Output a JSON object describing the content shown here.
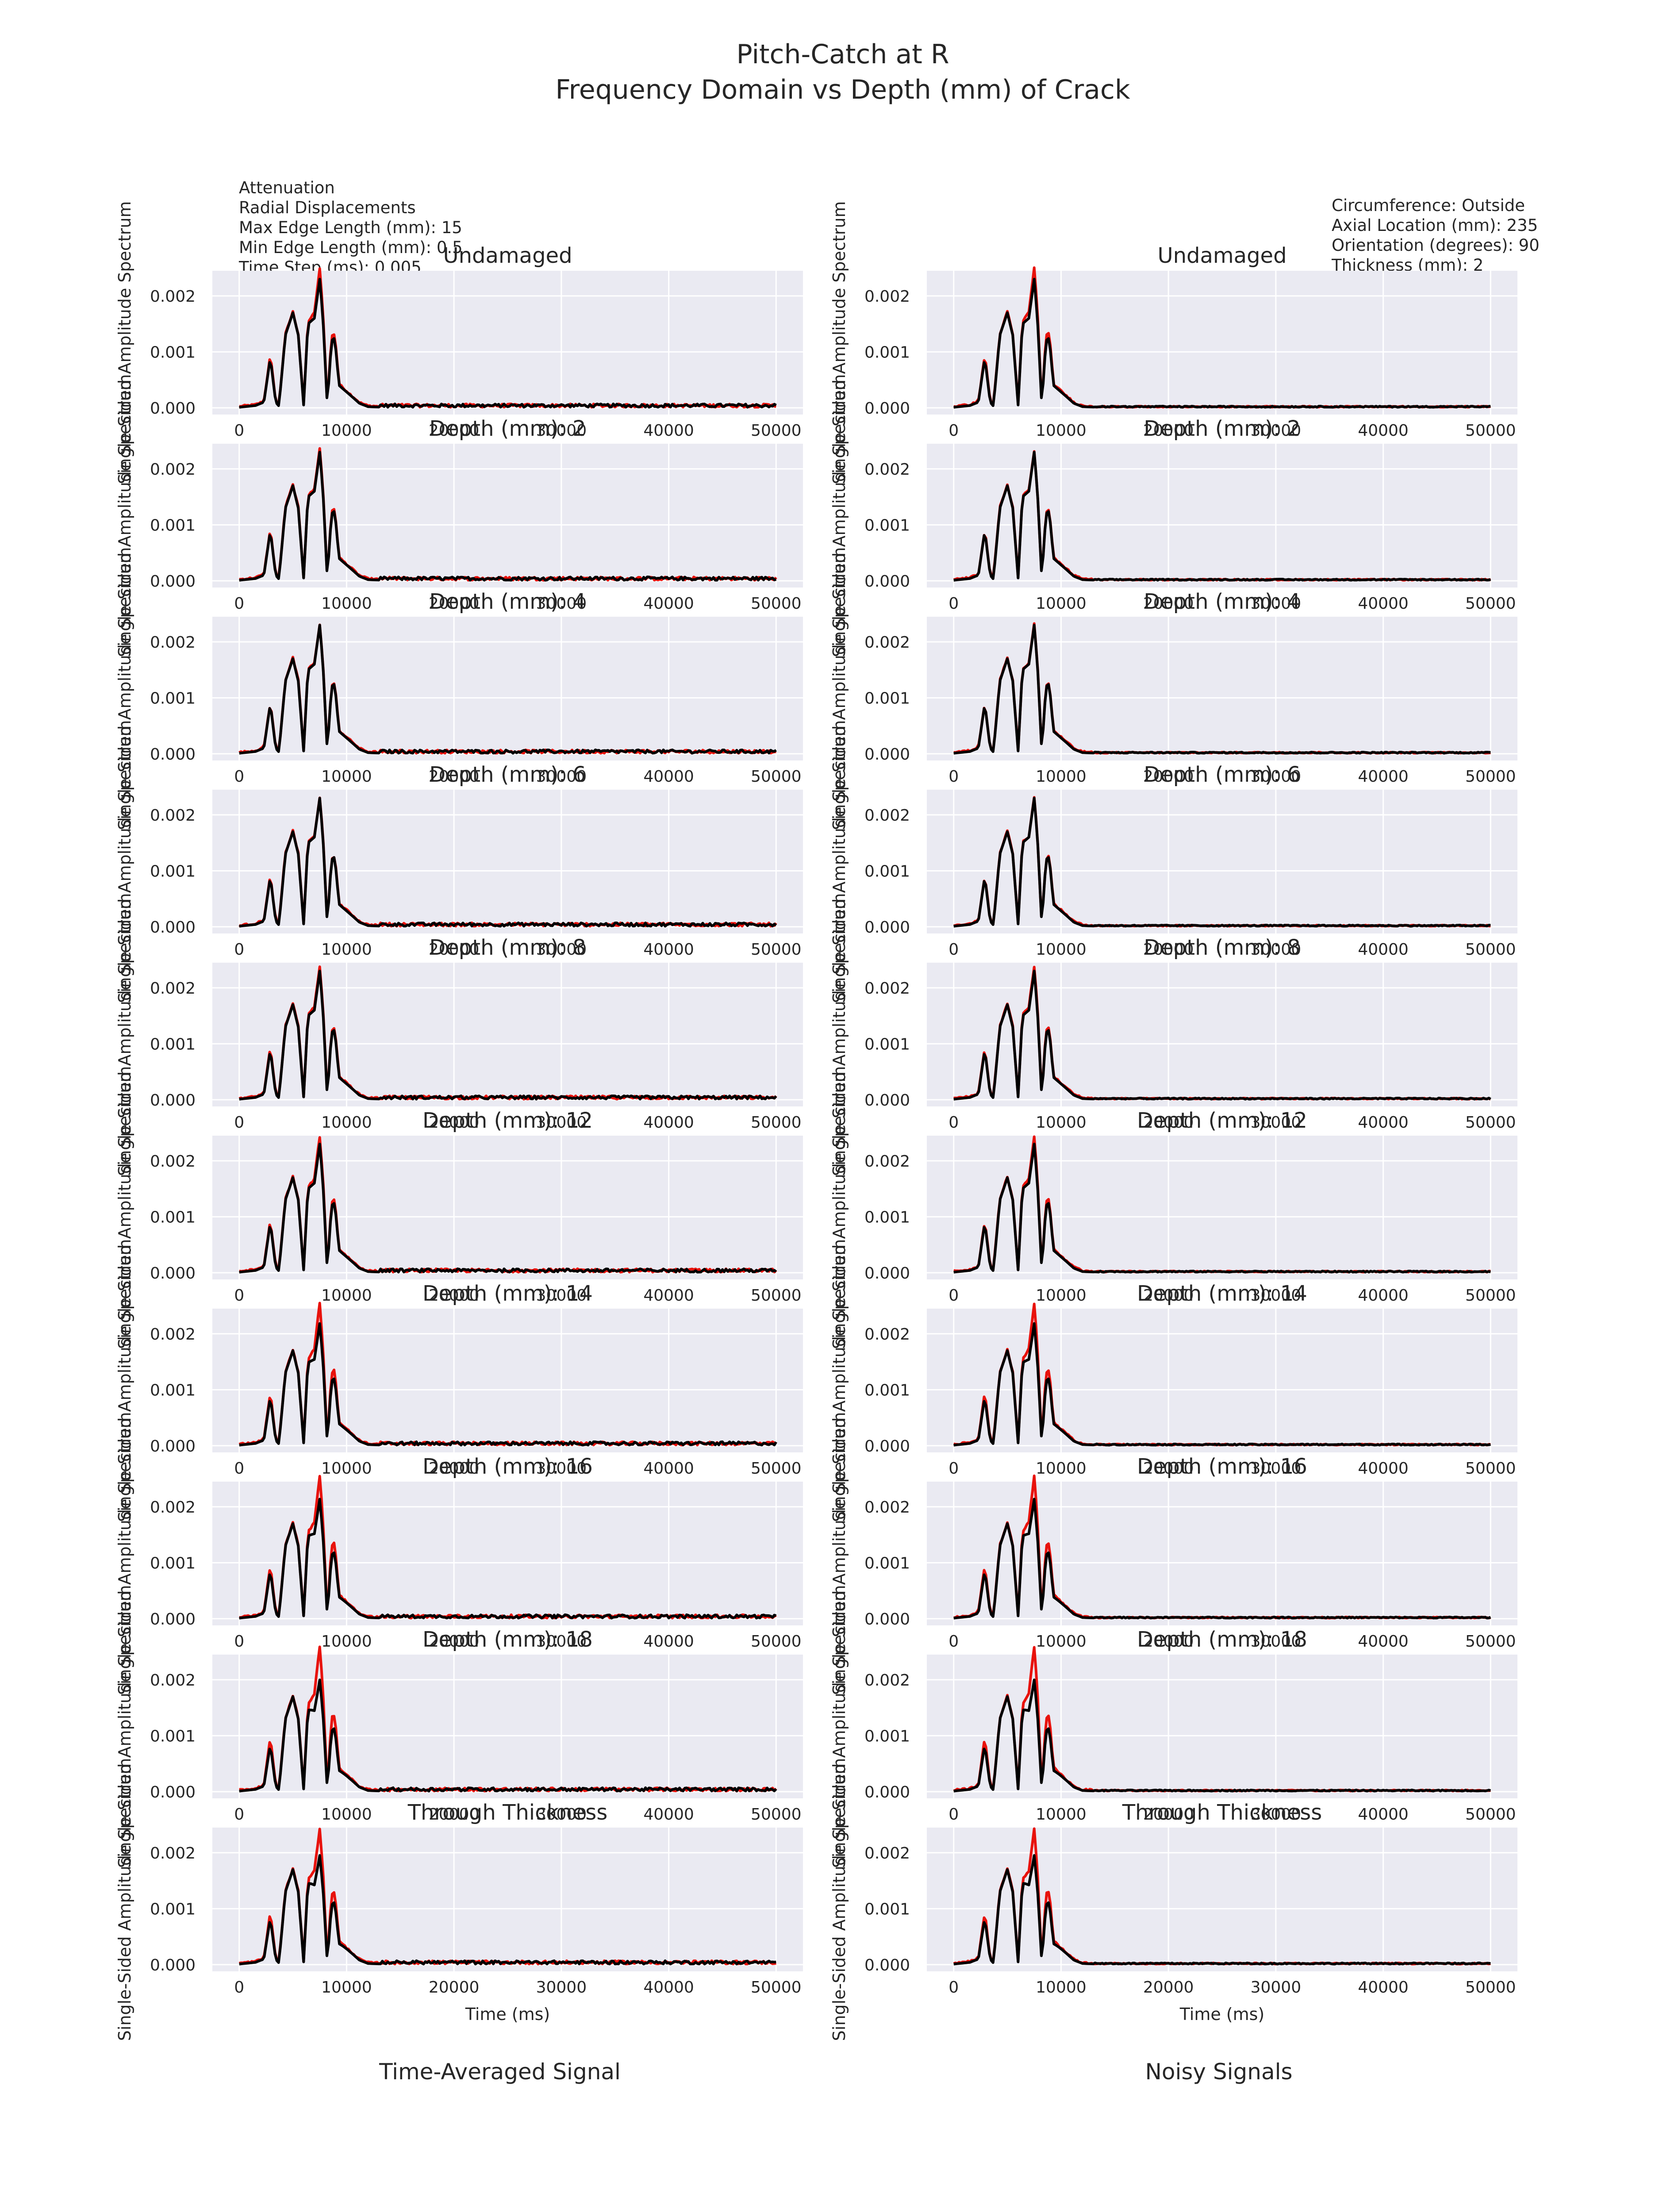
{
  "title_line1": "Pitch-Catch at R",
  "title_line2": "Frequency Domain vs Depth (mm) of Crack",
  "params_left": [
    "Attenuation",
    "Radial Displacements",
    "Max Edge Length (mm): 15",
    "Min Edge Length (mm): 0.5",
    "Time Step (ms): 0.005"
  ],
  "params_right": [
    "Circumference: Outside",
    "Axial Location (mm): 235",
    "Orientation (degrees): 90",
    "Thickness (mm): 2"
  ],
  "column_captions": [
    "Time-Averaged Signal",
    "Noisy Signals"
  ],
  "colors": {
    "plot_bg": "#eaeaf2",
    "grid": "#ffffff",
    "red_series": "#e8120c",
    "black_series": "#000000",
    "text": "#262626"
  },
  "chart_data": {
    "type": "line",
    "layout": "10 rows x 2 columns of subplots",
    "subplot_titles": [
      "Undamaged",
      "Depth (mm): 2",
      "Depth (mm): 4",
      "Depth (mm): 6",
      "Depth (mm): 8",
      "Depth (mm): 12",
      "Depth (mm): 14",
      "Depth (mm): 16",
      "Depth (mm): 18",
      "Through Thickness"
    ],
    "xlabel": "Time (ms)",
    "ylabel": "Single-Sided Amplitude Spectrum",
    "xlim": [
      -2500,
      52500
    ],
    "ylim": [
      -0.00012,
      0.00245
    ],
    "xticks": [
      0,
      10000,
      20000,
      30000,
      40000,
      50000
    ],
    "xtick_labels": [
      "0",
      "10000",
      "20000",
      "30000",
      "40000",
      "50000"
    ],
    "yticks": [
      0,
      0.001,
      0.002
    ],
    "ytick_labels": [
      "0.000",
      "0.001",
      "0.002"
    ],
    "grid": true,
    "legend": "none",
    "black_series_envelope": {
      "x": [
        0,
        1500,
        2300,
        2900,
        3400,
        3700,
        4300,
        5000,
        5500,
        6000,
        6400,
        7000,
        7500,
        7800,
        8200,
        8600,
        8900,
        9300,
        9900,
        10500,
        11200,
        12000,
        13500,
        15000,
        50000
      ],
      "y": [
        1e-05,
        4e-05,
        0.0001,
        0.0009,
        0.0001,
        3e-05,
        0.0013,
        0.0017,
        0.0013,
        5e-05,
        0.0015,
        0.0016,
        0.0023,
        0.0016,
        5e-05,
        0.0012,
        0.00125,
        0.0004,
        0.0003,
        0.0002,
        8e-05,
        2e-05,
        1e-05,
        1e-05,
        1e-05
      ]
    },
    "peak_scale": {
      "time_averaged": {
        "red": [
          1.07,
          1.02,
          1.0,
          1.0,
          1.03,
          1.05,
          1.1,
          1.1,
          1.12,
          1.05
        ],
        "black": [
          1.0,
          1.0,
          1.0,
          1.0,
          1.0,
          1.0,
          0.95,
          0.93,
          0.87,
          0.85
        ]
      },
      "noisy": {
        "red": [
          1.08,
          1.0,
          1.0,
          1.0,
          1.03,
          1.05,
          1.1,
          1.1,
          1.12,
          1.05
        ],
        "black": [
          1.0,
          1.0,
          1.0,
          1.0,
          1.0,
          1.0,
          0.95,
          0.93,
          0.87,
          0.85
        ]
      }
    },
    "noise_floor": {
      "time_averaged": 6e-05,
      "noisy": 2e-05
    }
  }
}
